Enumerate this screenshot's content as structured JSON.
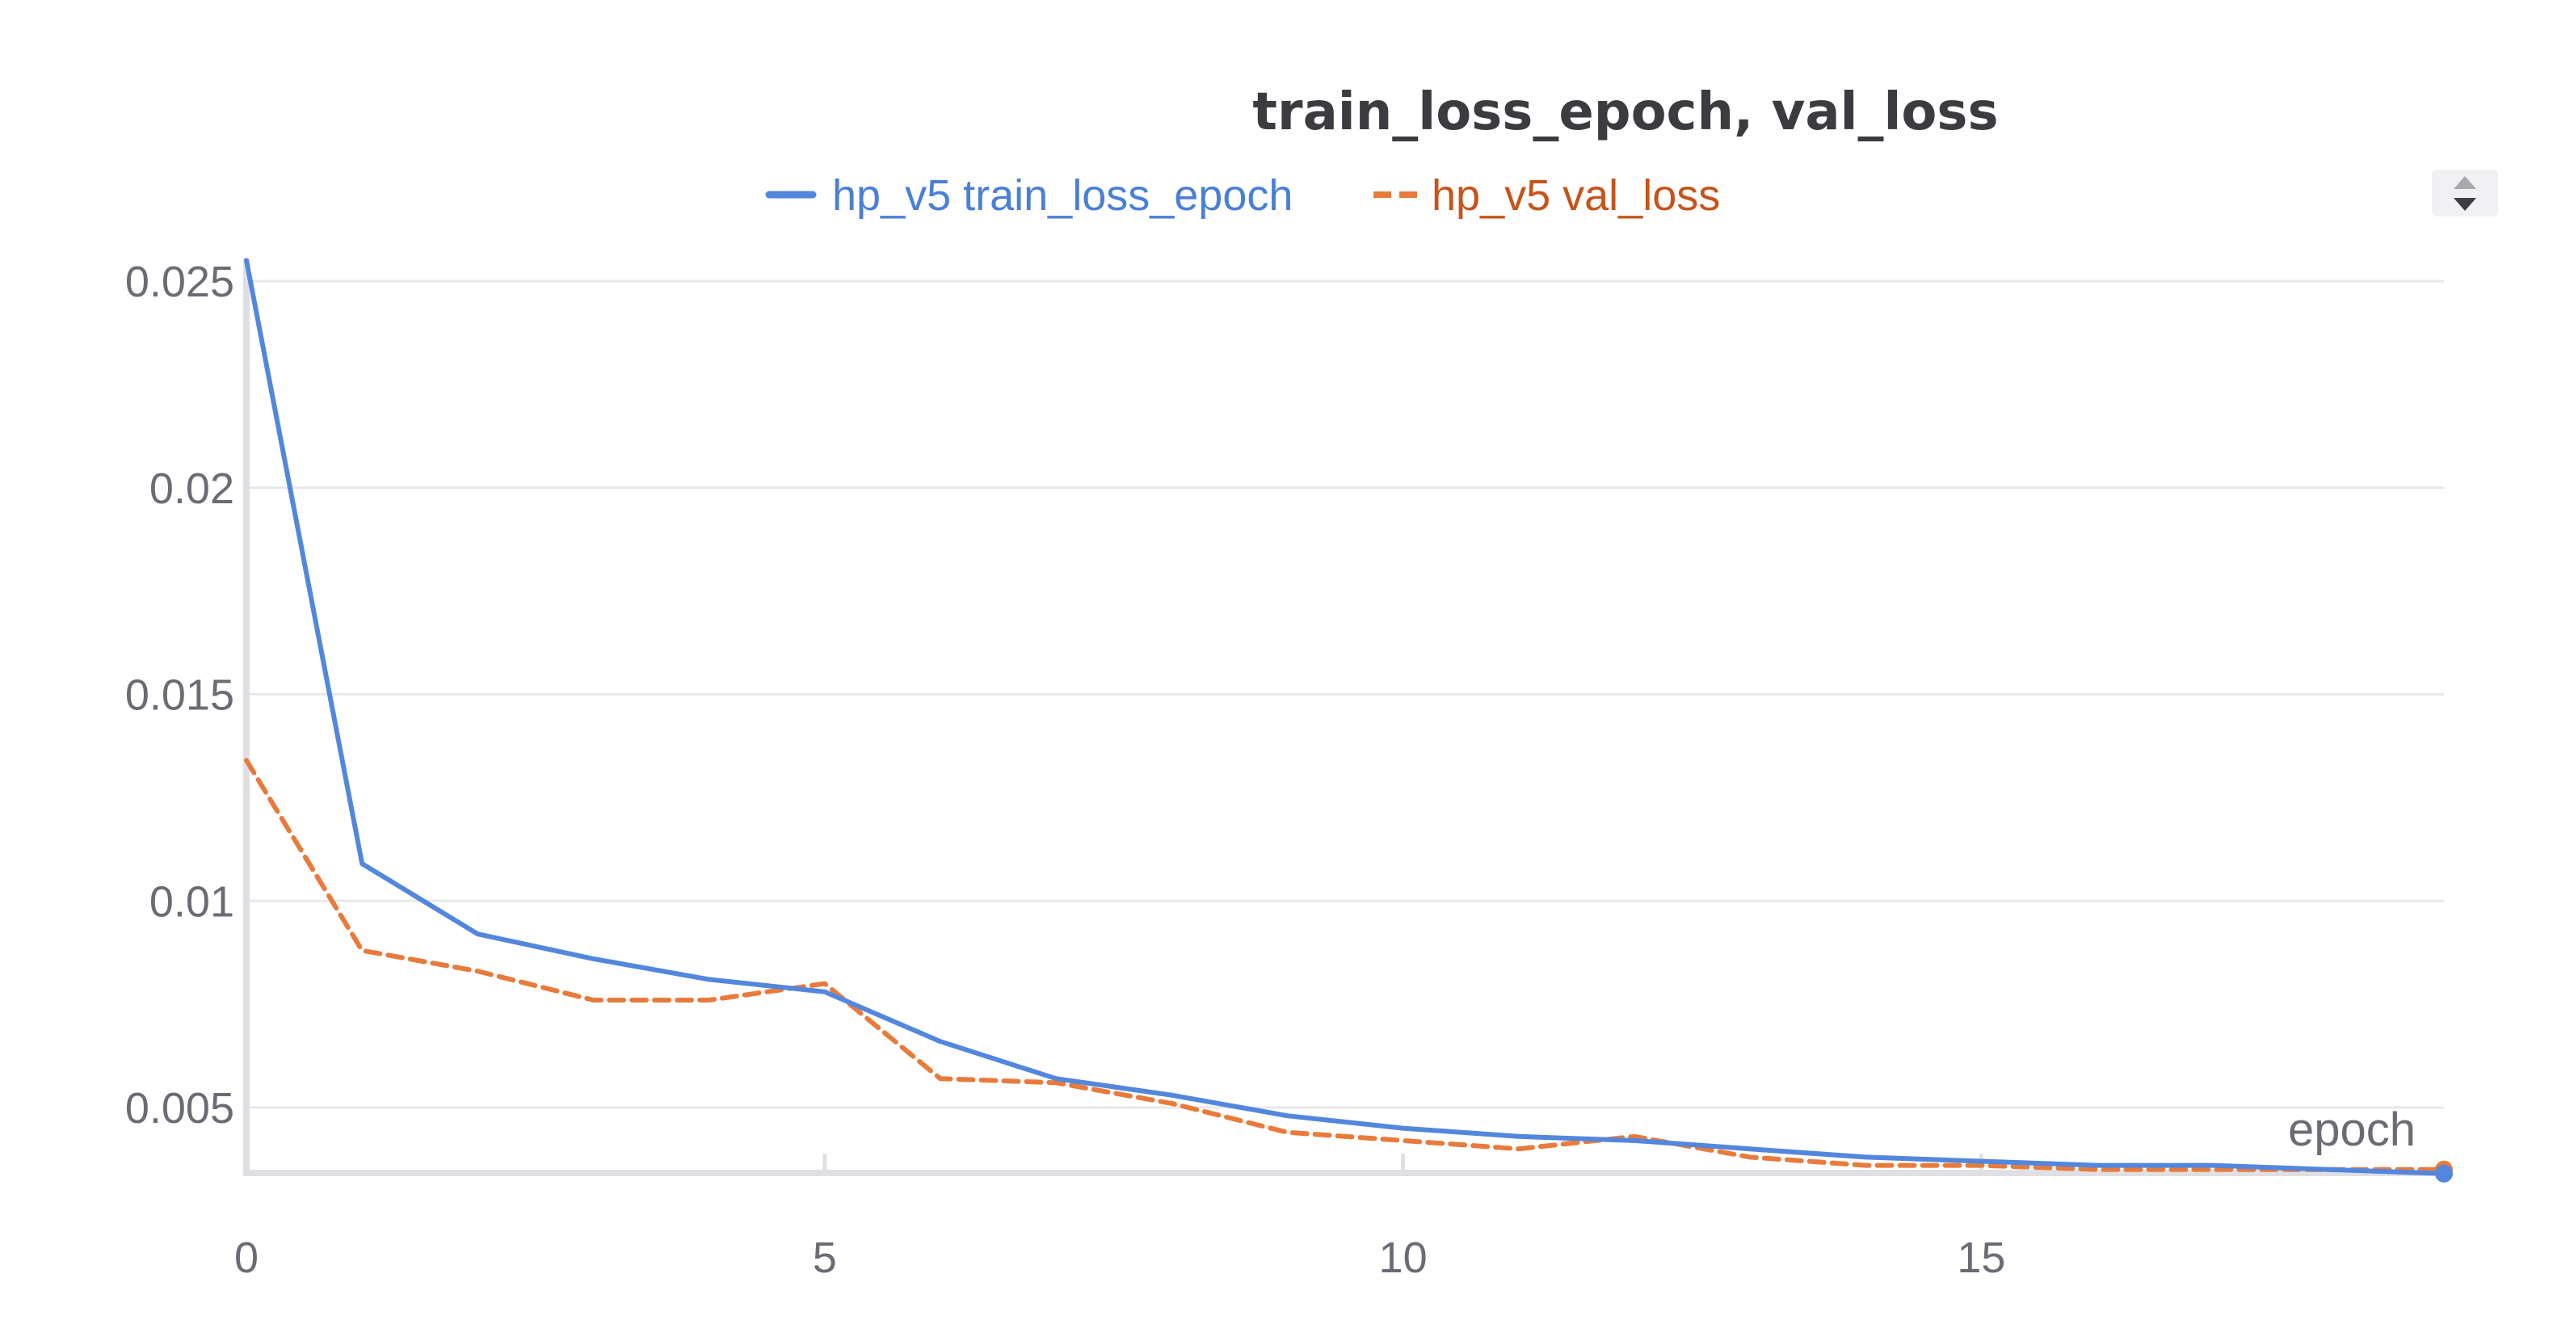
{
  "chart_data": {
    "type": "line",
    "title": "train_loss_epoch, val_loss",
    "xlabel": "epoch",
    "ylabel": "",
    "xlim": [
      0,
      19
    ],
    "ylim": [
      0.0034,
      0.0255
    ],
    "xticks": [
      0,
      5,
      10,
      15
    ],
    "yticks": [
      0.005,
      0.01,
      0.015,
      0.02,
      0.025
    ],
    "xtick_labels": [
      "0",
      "5",
      "10",
      "15"
    ],
    "ytick_labels": [
      "0.005",
      "0.01",
      "0.015",
      "0.02",
      "0.025"
    ],
    "grid": true,
    "legend_position": "top-center",
    "x": [
      0,
      1,
      2,
      3,
      4,
      5,
      6,
      7,
      8,
      9,
      10,
      11,
      12,
      13,
      14,
      15,
      16,
      17,
      18,
      19
    ],
    "series": [
      {
        "name": "hp_v5 train_loss_epoch",
        "color": "#5387dd",
        "dash": "solid",
        "values": [
          0.0255,
          0.0109,
          0.0092,
          0.0086,
          0.0081,
          0.0078,
          0.0066,
          0.0057,
          0.0053,
          0.0048,
          0.0045,
          0.0043,
          0.0042,
          0.004,
          0.0038,
          0.0037,
          0.0036,
          0.0036,
          0.0035,
          0.0034
        ]
      },
      {
        "name": "hp_v5 val_loss",
        "color": "#e87b3c",
        "dash": "dashed",
        "values": [
          0.0134,
          0.0088,
          0.0083,
          0.0076,
          0.0076,
          0.008,
          0.0057,
          0.0056,
          0.0051,
          0.0044,
          0.0042,
          0.004,
          0.0043,
          0.0038,
          0.0036,
          0.0036,
          0.0035,
          0.0035,
          0.0035,
          0.0035
        ]
      }
    ],
    "legend_text_colors": [
      "#4a7fd6",
      "#c6541b"
    ],
    "scroll_control_icon": "up-down-arrows-icon"
  }
}
